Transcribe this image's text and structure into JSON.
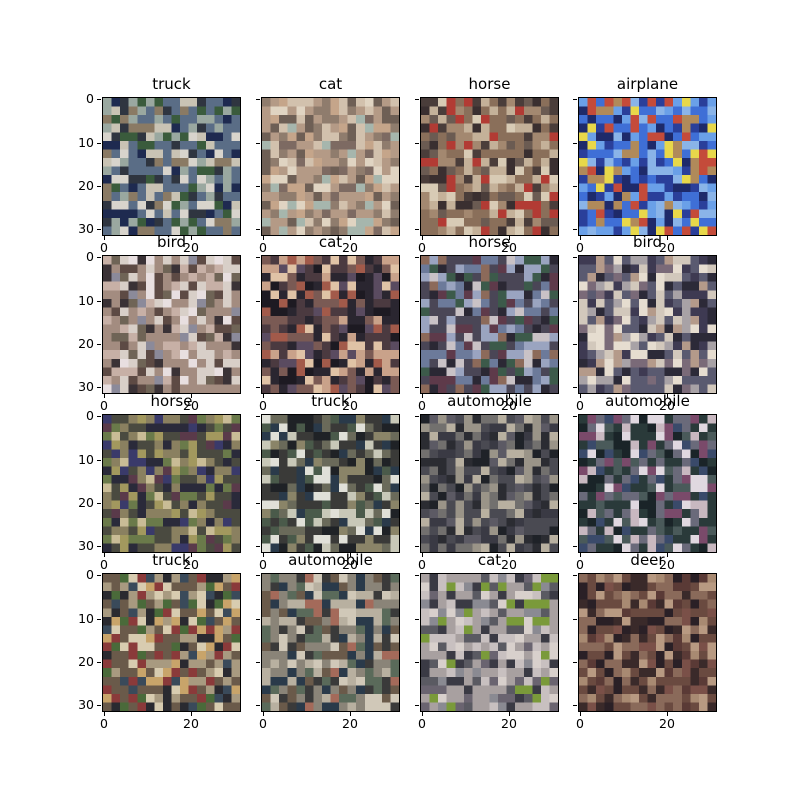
{
  "figure": {
    "panels": [
      {
        "title": "truck",
        "palette": [
          "#5a6d86",
          "#9aa8a0",
          "#2f3540",
          "#c9c3b4",
          "#3a5b3c",
          "#8a7a64",
          "#1e2a50",
          "#d8d4cc"
        ]
      },
      {
        "title": "cat",
        "palette": [
          "#b49a86",
          "#8f7c6d",
          "#d2c1ad",
          "#6e5f55",
          "#c5a58a",
          "#a6b6ad",
          "#7d6a62",
          "#e0d4c2"
        ]
      },
      {
        "title": "horse",
        "palette": [
          "#8a6f5a",
          "#c4b199",
          "#4a3d3a",
          "#b23b34",
          "#a38870",
          "#6b5b52",
          "#d8cbb5",
          "#3a2f30"
        ]
      },
      {
        "title": "airplane",
        "palette": [
          "#3f6fd6",
          "#2a3f9a",
          "#6aa0e8",
          "#e8d84a",
          "#c44b3a",
          "#1e2a6a",
          "#8ab4e8",
          "#b08a5a"
        ]
      },
      {
        "title": "bird",
        "palette": [
          "#a38c80",
          "#d8cfc8",
          "#5d4a44",
          "#c7b0a6",
          "#3a3236",
          "#8b8a9a",
          "#e8dfe0",
          "#6f6456"
        ]
      },
      {
        "title": "cat",
        "palette": [
          "#2a2630",
          "#4b3a40",
          "#c9a28a",
          "#7a5a54",
          "#1d1a22",
          "#e0c3a6",
          "#5a4b60",
          "#a25a4a"
        ]
      },
      {
        "title": "horse",
        "palette": [
          "#4a4656",
          "#6c7a9a",
          "#2b2834",
          "#9aa4c0",
          "#8c6a5a",
          "#3c5a4a",
          "#c9c2c6",
          "#5e3a4a"
        ]
      },
      {
        "title": "bird",
        "palette": [
          "#5a5a70",
          "#a8a2a6",
          "#2c2a38",
          "#d2c8bc",
          "#7a6a78",
          "#3e3a52",
          "#b49a8a",
          "#e6ddd0"
        ]
      },
      {
        "title": "horse",
        "palette": [
          "#4a4a40",
          "#8a8060",
          "#2a2a3a",
          "#6a7a4a",
          "#a2985e",
          "#3a3a6a",
          "#c9bc96",
          "#5a3a4a"
        ]
      },
      {
        "title": "truck",
        "palette": [
          "#3a3a38",
          "#6a6a5a",
          "#1f2226",
          "#c8c8b8",
          "#8a8468",
          "#4a5a4a",
          "#e0e0d8",
          "#2a3a4a"
        ]
      },
      {
        "title": "automobile",
        "palette": [
          "#4a4a52",
          "#72706e",
          "#2b2c32",
          "#9a9488",
          "#5c5a64",
          "#3a3a44",
          "#b8b0a0",
          "#1f2228"
        ]
      },
      {
        "title": "automobile",
        "palette": [
          "#2a3a3a",
          "#4a5a5a",
          "#1a2428",
          "#c8b8c0",
          "#6a6a7a",
          "#3a4a6a",
          "#e0d8e0",
          "#7a4a6a"
        ]
      },
      {
        "title": "truck",
        "palette": [
          "#6a5a4a",
          "#a89a80",
          "#2a2a30",
          "#c8a46a",
          "#8a3a3a",
          "#3a4a5a",
          "#d8ccb0",
          "#4a6a3a"
        ]
      },
      {
        "title": "automobile",
        "palette": [
          "#8a8478",
          "#b8b0a0",
          "#3a3a3a",
          "#5a6a5a",
          "#d0c8b8",
          "#2a3a4a",
          "#6a5a4a",
          "#a46a5a"
        ]
      },
      {
        "title": "cat",
        "palette": [
          "#a8a0a0",
          "#c8c0c0",
          "#5a5a62",
          "#7a9a3a",
          "#8a8a92",
          "#3a3a44",
          "#d8d0cc",
          "#6a6470"
        ]
      },
      {
        "title": "deer",
        "palette": [
          "#6a4a40",
          "#8a6a5a",
          "#3a2a2a",
          "#a88a72",
          "#5a3a36",
          "#2a2026",
          "#b89a82",
          "#7a5048"
        ]
      }
    ],
    "y_tick_labels": [
      "0",
      "10",
      "20",
      "30"
    ],
    "x_tick_labels": [
      "0",
      "20"
    ]
  }
}
